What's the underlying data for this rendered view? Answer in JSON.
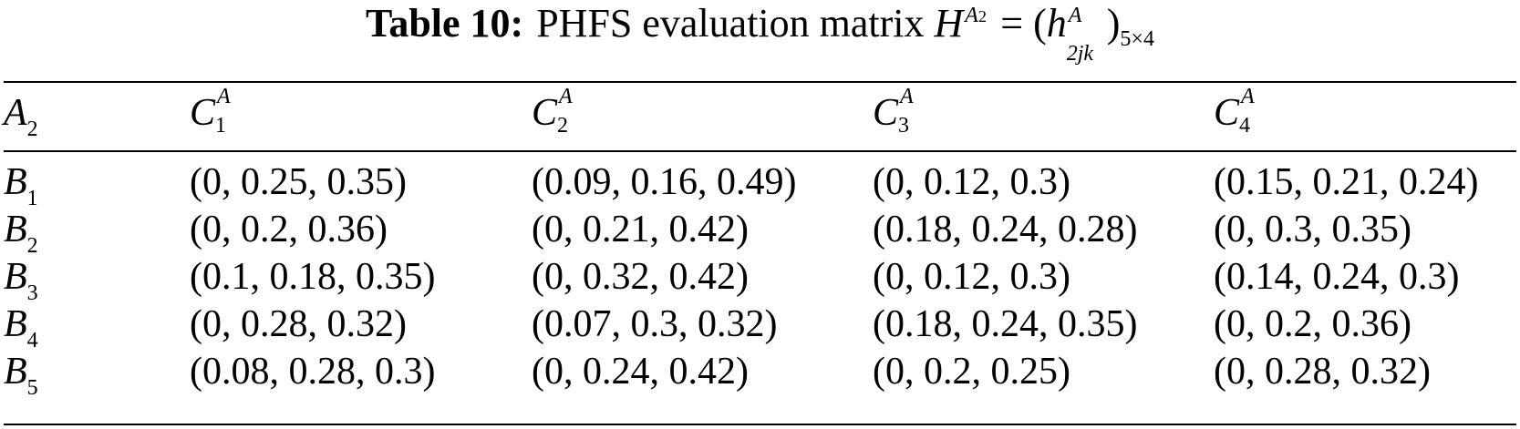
{
  "caption": {
    "label": "Table 10:",
    "text": "PHFS evaluation matrix",
    "matrix_symbol": "H",
    "matrix_sup": "A",
    "matrix_sup_sub": "2",
    "equals": "= (",
    "entry_symbol": "h",
    "entry_sup": "A",
    "entry_sub": "2jk",
    "close": ")",
    "dims": "5×4"
  },
  "table": {
    "corner": {
      "letter": "A",
      "sub": "2"
    },
    "columns": [
      {
        "letter": "C",
        "sup": "A",
        "sub": "1"
      },
      {
        "letter": "C",
        "sup": "A",
        "sub": "2"
      },
      {
        "letter": "C",
        "sup": "A",
        "sub": "3"
      },
      {
        "letter": "C",
        "sup": "A",
        "sub": "4"
      }
    ],
    "rows": [
      {
        "letter": "B",
        "sub": "1",
        "cells": [
          "(0, 0.25, 0.35)",
          "(0.09, 0.16, 0.49)",
          "(0, 0.12, 0.3)",
          "(0.15, 0.21, 0.24)"
        ]
      },
      {
        "letter": "B",
        "sub": "2",
        "cells": [
          "(0, 0.2, 0.36)",
          "(0, 0.21, 0.42)",
          "(0.18, 0.24, 0.28)",
          "(0, 0.3, 0.35)"
        ]
      },
      {
        "letter": "B",
        "sub": "3",
        "cells": [
          "(0.1, 0.18, 0.35)",
          "(0, 0.32, 0.42)",
          "(0, 0.12, 0.3)",
          "(0.14, 0.24, 0.3)"
        ]
      },
      {
        "letter": "B",
        "sub": "4",
        "cells": [
          "(0, 0.28, 0.32)",
          "(0.07, 0.3, 0.32)",
          "(0.18, 0.24, 0.35)",
          "(0, 0.2, 0.36)"
        ]
      },
      {
        "letter": "B",
        "sub": "5",
        "cells": [
          "(0.08, 0.28, 0.3)",
          "(0, 0.24, 0.42)",
          "(0, 0.2, 0.25)",
          "(0, 0.28, 0.32)"
        ]
      }
    ]
  }
}
